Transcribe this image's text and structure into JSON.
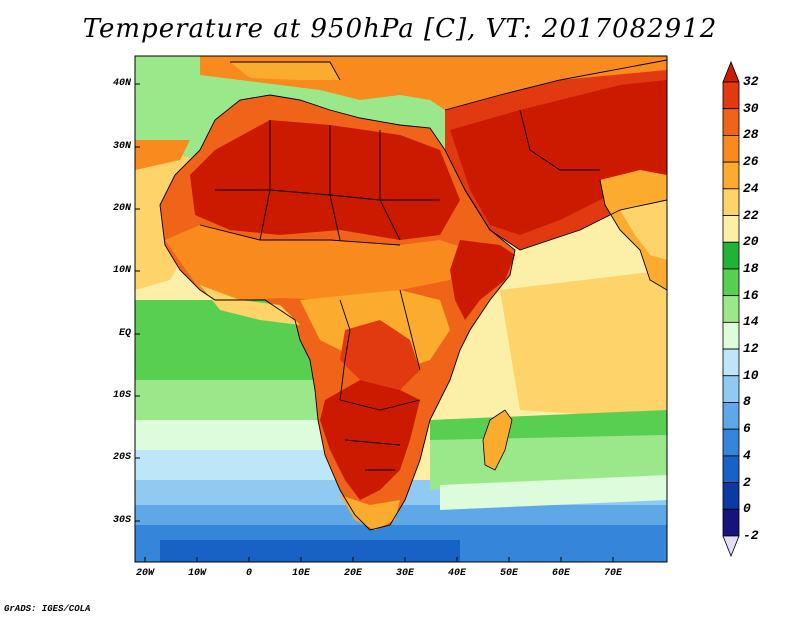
{
  "title": "Temperature at 950hPa [C], VT: 2017082912",
  "footer": "GrADS: IGES/COLA",
  "map": {
    "region": "Africa and Middle East",
    "variable": "temperature",
    "level": "950hPa",
    "units": "C",
    "lat_labels": [
      "40N",
      "30N",
      "20N",
      "10N",
      "EQ",
      "10S",
      "20S",
      "30S"
    ],
    "lon_labels": [
      "20W",
      "10W",
      "0",
      "10E",
      "20E",
      "30E",
      "40E",
      "50E",
      "60E",
      "70E"
    ]
  },
  "colorbar": {
    "labels": [
      "32",
      "30",
      "28",
      "26",
      "24",
      "22",
      "20",
      "18",
      "16",
      "14",
      "12",
      "10",
      "8",
      "6",
      "4",
      "2",
      "0",
      "-2"
    ],
    "colors": [
      "#cc1a00",
      "#e23a10",
      "#ef6418",
      "#f98a1e",
      "#fbac2e",
      "#fdd36a",
      "#fcf0a8",
      "#1fb438",
      "#58cf50",
      "#9ae88a",
      "#ddfcdc",
      "#bde6f8",
      "#90c9f2",
      "#5fa8e8",
      "#3586db",
      "#1862c6",
      "#0b3aa4",
      "#16137c",
      "#e3ddf8"
    ]
  }
}
